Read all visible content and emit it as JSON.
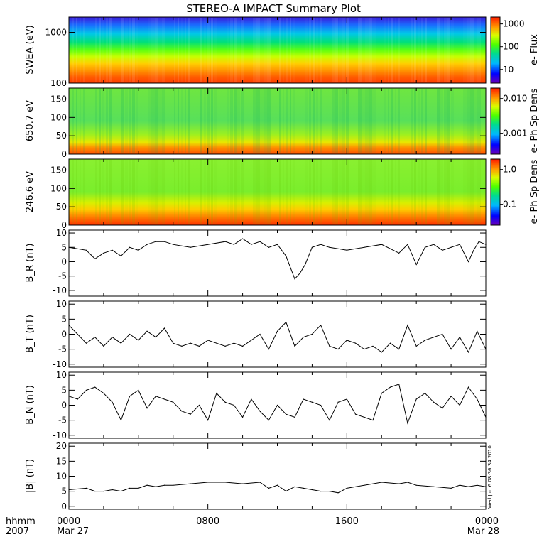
{
  "title": "STEREO-A IMPACT Summary Plot",
  "footer": {
    "row1_label": "hhmm",
    "row2_label": "2007",
    "start_date": "Mar 27",
    "end_date": "Mar 28",
    "stamp": "Wed Jun  6 08:36:34 2010"
  },
  "chart_data": [
    {
      "type": "heatmap",
      "ylabel": "SWEA (eV)",
      "y_scale": "log",
      "ylim": [
        100,
        2000
      ],
      "yticks": [
        "100",
        "1000"
      ],
      "colorbar": {
        "label": "e- Flux",
        "scale": "log",
        "ticks": [
          "10",
          "100",
          "1000"
        ]
      }
    },
    {
      "type": "heatmap",
      "ylabel": "650.7 eV",
      "ylim": [
        0,
        180
      ],
      "yticks": [
        "0",
        "50",
        "100",
        "150"
      ],
      "colorbar": {
        "label": "e- Ph Sp Dens",
        "scale": "log",
        "ticks": [
          "0.001",
          "0.010"
        ]
      }
    },
    {
      "type": "heatmap",
      "ylabel": "246.6 eV",
      "ylim": [
        0,
        180
      ],
      "yticks": [
        "0",
        "50",
        "100",
        "150"
      ],
      "colorbar": {
        "label": "e- Ph Sp Dens",
        "scale": "log",
        "ticks": [
          "0.1",
          "1.0"
        ]
      }
    },
    {
      "type": "line",
      "ylabel": "B_R (nT)",
      "ylim": [
        -12,
        11
      ],
      "yticks": [
        "-10",
        "-5",
        "0",
        "5",
        "10"
      ],
      "x": [
        0,
        1,
        1.5,
        2,
        2.5,
        3,
        3.5,
        4,
        4.5,
        5,
        5.5,
        6,
        7,
        8,
        9,
        9.5,
        10,
        10.5,
        11,
        11.5,
        12,
        12.5,
        13,
        13.3,
        13.6,
        14,
        14.5,
        15,
        16,
        17,
        18,
        19,
        19.5,
        20,
        20.5,
        21,
        21.5,
        22,
        22.5,
        23,
        23.3,
        23.6,
        24
      ],
      "y": [
        5,
        4,
        1,
        3,
        4,
        2,
        5,
        4,
        6,
        7,
        7,
        6,
        5,
        6,
        7,
        6,
        8,
        6,
        7,
        5,
        6,
        2,
        -6,
        -4,
        -1,
        5,
        6,
        5,
        4,
        5,
        6,
        3,
        6,
        -1,
        5,
        6,
        4,
        5,
        6,
        0,
        4,
        7,
        6
      ]
    },
    {
      "type": "line",
      "ylabel": "B_T (nT)",
      "ylim": [
        -11,
        11
      ],
      "yticks": [
        "-10",
        "-5",
        "0",
        "5",
        "10"
      ],
      "x": [
        0,
        0.5,
        1,
        1.5,
        2,
        2.5,
        3,
        3.5,
        4,
        4.5,
        5,
        5.5,
        6,
        6.5,
        7,
        7.5,
        8,
        8.5,
        9,
        9.5,
        10,
        10.5,
        11,
        11.5,
        12,
        12.5,
        13,
        13.5,
        14,
        14.5,
        15,
        15.5,
        16,
        16.5,
        17,
        17.5,
        18,
        18.5,
        19,
        19.5,
        20,
        20.5,
        21,
        21.5,
        22,
        22.5,
        23,
        23.5,
        24
      ],
      "y": [
        3,
        0,
        -3,
        -1,
        -4,
        -1,
        -3,
        0,
        -2,
        1,
        -1,
        2,
        -3,
        -4,
        -3,
        -4,
        -2,
        -3,
        -4,
        -3,
        -4,
        -2,
        0,
        -5,
        1,
        4,
        -4,
        -1,
        0,
        3,
        -4,
        -5,
        -2,
        -3,
        -5,
        -4,
        -6,
        -3,
        -5,
        3,
        -4,
        -2,
        -1,
        0,
        -5,
        -1,
        -6,
        1,
        -5
      ]
    },
    {
      "type": "line",
      "ylabel": "B_N (nT)",
      "ylim": [
        -11,
        11
      ],
      "yticks": [
        "-10",
        "-5",
        "0",
        "5",
        "10"
      ],
      "x": [
        0,
        0.5,
        1,
        1.5,
        2,
        2.5,
        3,
        3.5,
        4,
        4.5,
        5,
        5.5,
        6,
        6.5,
        7,
        7.5,
        8,
        8.5,
        9,
        9.5,
        10,
        10.5,
        11,
        11.5,
        12,
        12.5,
        13,
        13.5,
        14,
        14.5,
        15,
        15.5,
        16,
        16.5,
        17,
        17.5,
        18,
        18.5,
        19,
        19.5,
        20,
        20.5,
        21,
        21.5,
        22,
        22.5,
        23,
        23.5,
        24
      ],
      "y": [
        3,
        2,
        5,
        6,
        4,
        1,
        -5,
        3,
        5,
        -1,
        3,
        2,
        1,
        -2,
        -3,
        0,
        -5,
        4,
        1,
        0,
        -4,
        2,
        -2,
        -5,
        0,
        -3,
        -4,
        2,
        1,
        0,
        -5,
        1,
        2,
        -3,
        -4,
        -5,
        4,
        6,
        7,
        -6,
        2,
        4,
        1,
        -1,
        3,
        0,
        6,
        2,
        -4
      ]
    },
    {
      "type": "line",
      "ylabel": "|B| (nT)",
      "ylim": [
        -1,
        21
      ],
      "yticks": [
        "0",
        "5",
        "10",
        "15",
        "20"
      ],
      "xlim": [
        0,
        24
      ],
      "xticks": [
        "0000",
        "0800",
        "1600",
        "0000"
      ],
      "x": [
        0,
        1,
        1.5,
        2,
        2.5,
        3,
        3.5,
        4,
        4.5,
        5,
        5.5,
        6,
        7,
        8,
        9,
        10,
        11,
        11.5,
        12,
        12.5,
        13,
        13.5,
        14,
        14.5,
        15,
        15.5,
        16,
        17,
        18,
        19,
        19.5,
        20,
        21,
        22,
        22.5,
        23,
        23.5,
        24
      ],
      "y": [
        5.5,
        6,
        5,
        5,
        5.5,
        5,
        6,
        6,
        7,
        6.5,
        7,
        7,
        7.5,
        8,
        8,
        7.5,
        8,
        6,
        7,
        5,
        6.5,
        6,
        5.5,
        5,
        5,
        4.5,
        6,
        7,
        8,
        7.5,
        8,
        7,
        6.5,
        6,
        7,
        6.5,
        7,
        6.5
      ]
    }
  ]
}
